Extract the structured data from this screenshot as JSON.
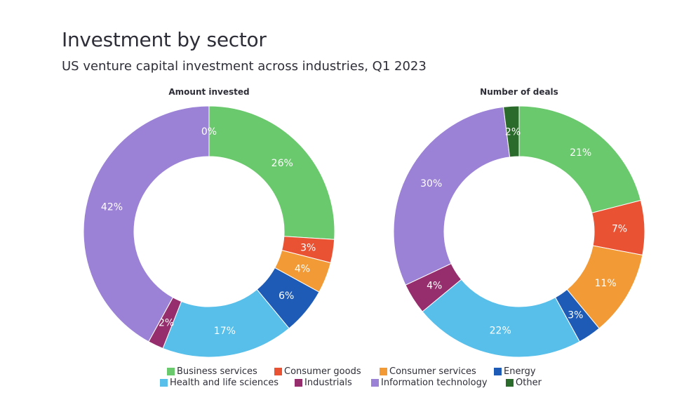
{
  "title": "Investment by sector",
  "subtitle": "US venture capital investment across industries, Q1 2023",
  "chart_data": [
    {
      "type": "pie",
      "title": "Amount invested",
      "categories": [
        "Business services",
        "Consumer goods",
        "Consumer services",
        "Energy",
        "Health and life sciences",
        "Industrials",
        "Information technology",
        "Other"
      ],
      "values": [
        26,
        3,
        4,
        6,
        17,
        2,
        42,
        0
      ],
      "labels": [
        "26%",
        "3%",
        "4%",
        "6%",
        "17%",
        "2%",
        "42%",
        "0%"
      ]
    },
    {
      "type": "pie",
      "title": "Number of deals",
      "categories": [
        "Business services",
        "Consumer goods",
        "Consumer services",
        "Energy",
        "Health and life sciences",
        "Industrials",
        "Information technology",
        "Other"
      ],
      "values": [
        21,
        7,
        11,
        3,
        22,
        4,
        30,
        2
      ],
      "labels": [
        "21%",
        "7%",
        "11%",
        "3%",
        "22%",
        "4%",
        "30%",
        "2%"
      ]
    }
  ],
  "legend": [
    {
      "label": "Business services",
      "color": "#6ac96d"
    },
    {
      "label": "Consumer goods",
      "color": "#ea5234"
    },
    {
      "label": "Consumer services",
      "color": "#f19a36"
    },
    {
      "label": "Energy",
      "color": "#1d5bb6"
    },
    {
      "label": "Health and life sciences",
      "color": "#57bfea"
    },
    {
      "label": "Industrials",
      "color": "#962e6e"
    },
    {
      "label": "Information technology",
      "color": "#9b82d6"
    },
    {
      "label": "Other",
      "color": "#2a6a2a"
    }
  ]
}
